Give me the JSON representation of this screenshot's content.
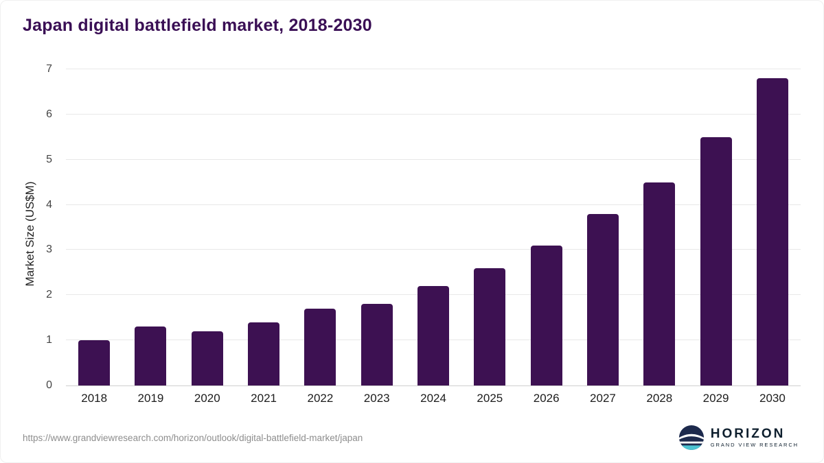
{
  "title": "Japan digital battlefield market, 2018-2030",
  "chart_data": {
    "type": "bar",
    "title": "Japan digital battlefield market, 2018-2030",
    "categories": [
      "2018",
      "2019",
      "2020",
      "2021",
      "2022",
      "2023",
      "2024",
      "2025",
      "2026",
      "2027",
      "2028",
      "2029",
      "2030"
    ],
    "values": [
      1.0,
      1.3,
      1.2,
      1.4,
      1.7,
      1.8,
      2.2,
      2.6,
      3.1,
      3.8,
      4.5,
      5.5,
      6.8
    ],
    "xlabel": "",
    "ylabel": "Market Size (US$M)",
    "ylim": [
      0,
      7
    ],
    "yticks": [
      0,
      1,
      2,
      3,
      4,
      5,
      6,
      7
    ],
    "bar_color": "#3d1152",
    "grid": true,
    "legend_position": "none"
  },
  "footer": {
    "source_url": "https://www.grandviewresearch.com/horizon/outlook/digital-battlefield-market/japan",
    "logo_title": "HORIZON",
    "logo_subtitle": "GRAND VIEW RESEARCH"
  },
  "colors": {
    "title": "#3a0f55",
    "bar": "#3d1152",
    "gridline": "#e8e8e8",
    "axis_line": "#cfcfcf",
    "logo_navy": "#1d2a4d",
    "logo_teal": "#4cc3d2"
  }
}
